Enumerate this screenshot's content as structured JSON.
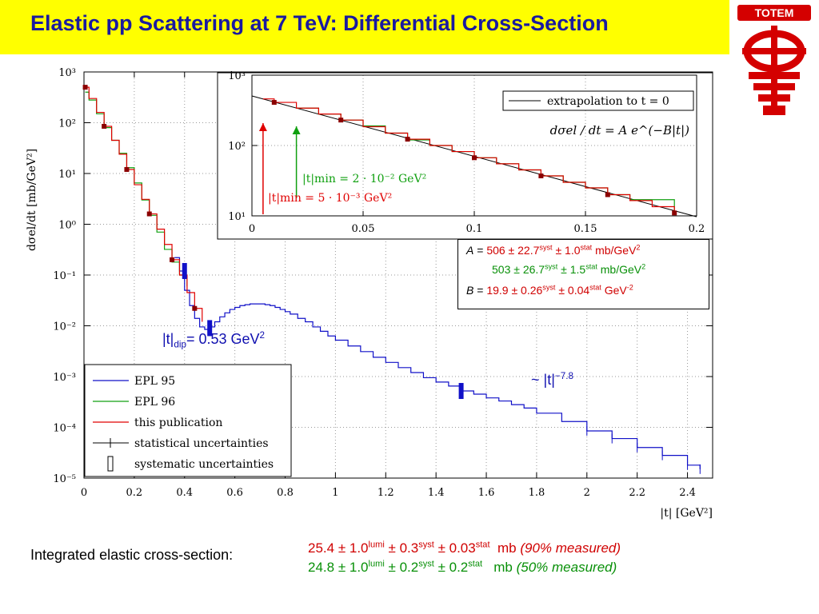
{
  "title": "Elastic pp Scattering at 7 TeV: Differential Cross-Section",
  "logo_text": "TOTEM",
  "colors": {
    "title_bg": "#ffff00",
    "title_fg": "#1a1aa0",
    "blue": "#1010c8",
    "green": "#10a010",
    "red": "#e00000",
    "logo": "#d40000"
  },
  "params": {
    "A_label": "A",
    "A1_val": "506",
    "A1_syst": "22.7",
    "A1_stat": "1.0",
    "A2_val": "503",
    "A2_syst": "26.7",
    "A2_stat": "1.5",
    "unit": "mb/GeV",
    "B_label": "B",
    "B_val": "19.9",
    "B_syst": "0.26",
    "B_stat": "0.04",
    "B_unit": "GeV"
  },
  "annotations": {
    "tdip_prefix": "|t|",
    "tdip_sub": "dip",
    "tdip_value": "= 0.53 GeV",
    "slope_prefix": "~ |t|",
    "slope_exp": "−7.8"
  },
  "integrated": {
    "label": "Integrated elastic cross-section:",
    "line1": {
      "value": "25.4",
      "lumi": "1.0",
      "syst": "0.3",
      "stat": "0.03",
      "unit": "mb",
      "note": "(90% measured)"
    },
    "line2": {
      "value": "24.8",
      "lumi": "1.0",
      "syst": "0.2",
      "stat": "0.2",
      "unit": "mb",
      "note": "(50% measured)"
    }
  },
  "chart_data": [
    {
      "type": "line",
      "title": "",
      "xlabel": "|t|   [GeV²]",
      "ylabel": "dσel/dt   [mb/GeV²]",
      "xlim": [
        0,
        2.5
      ],
      "ylim": [
        1e-05,
        1000
      ],
      "yscale": "log",
      "x_ticks": [
        "0",
        "0.2",
        "0.4",
        "0.6",
        "0.8",
        "1",
        "1.2",
        "1.4",
        "1.6",
        "1.8",
        "2",
        "2.2",
        "2.4"
      ],
      "y_ticks": [
        "10³",
        "10²",
        "10¹",
        "10⁰",
        "10⁻¹",
        "10⁻²",
        "10⁻³",
        "10⁻⁴",
        "10⁻⁵"
      ],
      "legend": {
        "placement": "bottom-left",
        "entries": [
          "EPL 95",
          "EPL 96",
          "this publication",
          "statistical uncertainties",
          "systematic uncertainties"
        ]
      },
      "series": [
        {
          "name": "EPL 95",
          "x": [
            0.36,
            0.38,
            0.4,
            0.42,
            0.44,
            0.46,
            0.48,
            0.5,
            0.52,
            0.54,
            0.56,
            0.58,
            0.6,
            0.62,
            0.64,
            0.66,
            0.68,
            0.7,
            0.72,
            0.74,
            0.76,
            0.78,
            0.8,
            0.82,
            0.85,
            0.88,
            0.91,
            0.94,
            0.97,
            1.0,
            1.05,
            1.1,
            1.15,
            1.2,
            1.25,
            1.3,
            1.35,
            1.4,
            1.45,
            1.5,
            1.55,
            1.6,
            1.65,
            1.7,
            1.75,
            1.8,
            1.9,
            2.0,
            2.1,
            2.2,
            2.3,
            2.4,
            2.45
          ],
          "y": [
            0.22,
            0.12,
            0.05,
            0.025,
            0.014,
            0.0095,
            0.0085,
            0.0095,
            0.012,
            0.015,
            0.018,
            0.021,
            0.023,
            0.025,
            0.026,
            0.027,
            0.027,
            0.027,
            0.026,
            0.025,
            0.023,
            0.021,
            0.019,
            0.017,
            0.014,
            0.012,
            0.0095,
            0.0078,
            0.0063,
            0.0052,
            0.004,
            0.0031,
            0.0024,
            0.0019,
            0.0015,
            0.0012,
            0.00095,
            0.00078,
            0.00065,
            0.00052,
            0.00045,
            0.00038,
            0.00033,
            0.00028,
            0.00024,
            0.00019,
            0.00013,
            8.5e-05,
            6e-05,
            4e-05,
            2.8e-05,
            1.8e-05,
            1.5e-05
          ]
        },
        {
          "name": "EPL 96",
          "x": [
            0.005,
            0.02,
            0.05,
            0.08,
            0.11,
            0.14,
            0.17,
            0.2,
            0.23,
            0.26,
            0.29,
            0.32,
            0.35,
            0.38,
            0.41
          ],
          "y": [
            400,
            280,
            150,
            80,
            45,
            25,
            13,
            6.5,
            3.0,
            1.5,
            0.7,
            0.32,
            0.18,
            0.1,
            0.06
          ]
        },
        {
          "name": "this publication",
          "x": [
            0.005,
            0.02,
            0.05,
            0.08,
            0.11,
            0.14,
            0.17,
            0.2,
            0.23,
            0.26,
            0.29,
            0.32,
            0.35,
            0.38,
            0.41,
            0.44,
            0.47
          ],
          "y": [
            500,
            300,
            160,
            85,
            45,
            24,
            12,
            6,
            3.1,
            1.6,
            0.8,
            0.4,
            0.2,
            0.1,
            0.045,
            0.022,
            0.012
          ]
        }
      ]
    },
    {
      "type": "line",
      "title": "",
      "xlim": [
        0,
        0.2
      ],
      "ylim": [
        10,
        1000
      ],
      "yscale": "log",
      "x_ticks": [
        "0",
        "0.05",
        "0.1",
        "0.15",
        "0.2"
      ],
      "y_ticks": [
        "10³",
        "10²",
        "10¹"
      ],
      "legend": {
        "placement": "top-right",
        "entries": [
          "extrapolation to t = 0"
        ]
      },
      "formula": "dσel / dt = A e^(−B|t|)",
      "arrows": [
        {
          "label": "|t|min = 2 · 10⁻² GeV²",
          "x": 0.02
        },
        {
          "label": "|t|min = 5 · 10⁻³ GeV²",
          "x": 0.005
        }
      ],
      "series": [
        {
          "name": "extrapolation to t = 0",
          "x": [
            0,
            0.2
          ],
          "y": [
            506,
            9.7
          ]
        },
        {
          "name": "EPL 96",
          "x": [
            0.02,
            0.03,
            0.04,
            0.05,
            0.06,
            0.07,
            0.08,
            0.09,
            0.1,
            0.11,
            0.12,
            0.13,
            0.14,
            0.15,
            0.16,
            0.17,
            0.19
          ],
          "y": [
            340,
            280,
            230,
            190,
            150,
            120,
            100,
            82,
            67,
            55,
            45,
            37,
            30,
            25,
            20,
            17,
            12
          ]
        },
        {
          "name": "this publication",
          "x": [
            0.005,
            0.01,
            0.02,
            0.03,
            0.04,
            0.05,
            0.06,
            0.07,
            0.08,
            0.09,
            0.1,
            0.11,
            0.12,
            0.13,
            0.14,
            0.15,
            0.16,
            0.17,
            0.18,
            0.19
          ],
          "y": [
            460,
            410,
            340,
            280,
            230,
            185,
            150,
            123,
            100,
            82,
            67,
            55,
            45,
            37,
            30,
            25,
            20,
            16.5,
            13.5,
            11
          ]
        }
      ]
    }
  ]
}
